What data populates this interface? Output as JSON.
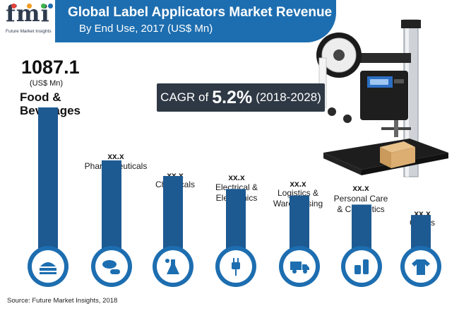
{
  "header": {
    "title": "Global Label Applicators Market Revenue",
    "subtitle": "By End Use, 2017 (US$ Mn)"
  },
  "logo": {
    "text": "fmi",
    "caption": "Future Market Insights"
  },
  "cagr": {
    "label": "CAGR of",
    "value": "5.2%",
    "range": "(2018-2028)"
  },
  "highlight": {
    "value": "1087.1",
    "unit": "(US$ Mn)",
    "label_line1": "Food &",
    "label_line2": "Beverages"
  },
  "labels": [
    {
      "value": "xx.x",
      "line1": "Pharmaceuticals",
      "line2": ""
    },
    {
      "value": "xx.x",
      "line1": "Chemicals",
      "line2": ""
    },
    {
      "value": "xx.x",
      "line1": "Electrical &",
      "line2": "Electronics"
    },
    {
      "value": "xx.x",
      "line1": "Logistics &",
      "line2": "Warehousing"
    },
    {
      "value": "xx.x",
      "line1": "Personal Care",
      "line2": "& Cosmetics"
    },
    {
      "value": "xx.x",
      "line1": "Others",
      "line2": ""
    }
  ],
  "chart_data": {
    "type": "bar",
    "title": "Global Label Applicators Market Revenue",
    "subtitle": "By End Use, 2017 (US$ Mn)",
    "categories": [
      "Food & Beverages",
      "Pharmaceuticals",
      "Chemicals",
      "Electrical & Electronics",
      "Logistics & Warehousing",
      "Personal Care & Cosmetics",
      "Others"
    ],
    "values": [
      1087.1,
      680,
      560,
      460,
      410,
      340,
      260
    ],
    "data_labels": [
      "1087.1",
      "xx.x",
      "xx.x",
      "xx.x",
      "xx.x",
      "xx.x",
      "xx.x"
    ],
    "icons": [
      "food-icon",
      "pills-icon",
      "chemical-beaker-icon",
      "electric-plug-icon",
      "delivery-truck-icon",
      "cosmetics-icon",
      "clothing-icon"
    ],
    "bar_color": "#1d5a92",
    "badge_color": "#1d6eb0",
    "unit": "US$ Mn"
  },
  "source": "Source: Future Market Insights, 2018",
  "colors": {
    "brand_blue": "#1d6eb0",
    "bar_blue": "#1d5a92",
    "dark_box": "#2f3945",
    "logo_dots": [
      "#e8403a",
      "#f39c1f",
      "#3db54a",
      "#1d6eb0"
    ]
  }
}
